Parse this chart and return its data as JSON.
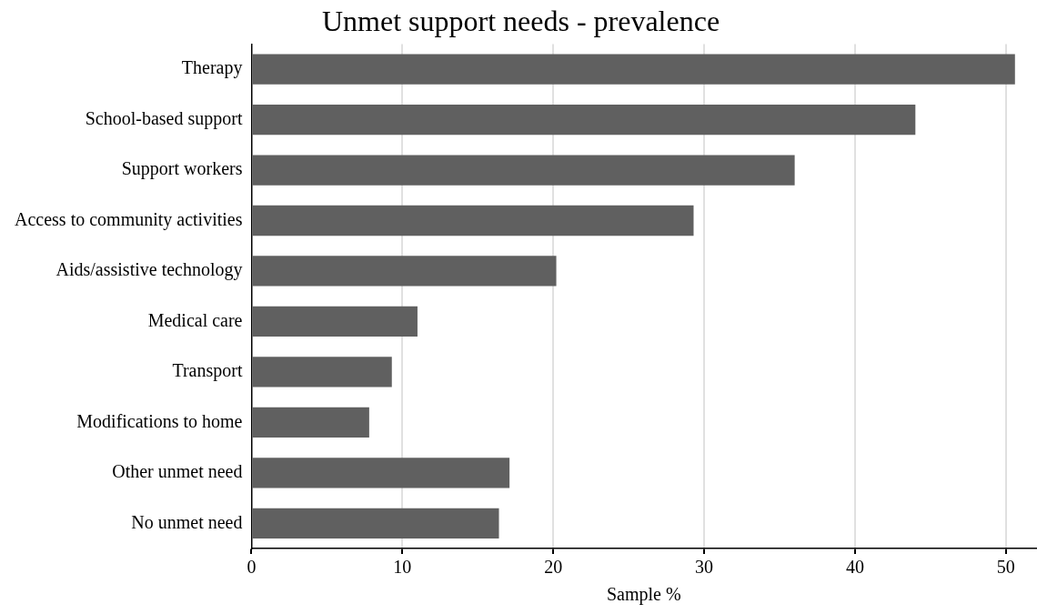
{
  "chart_data": {
    "type": "bar",
    "orientation": "horizontal",
    "title": "Unmet support needs - prevalence",
    "xlabel": "Sample %",
    "categories": [
      "Therapy",
      "School-based support",
      "Support workers",
      "Access to community activities",
      "Aids/assistive technology",
      "Medical care",
      "Transport",
      "Modifications to home",
      "Other unmet need",
      "No unmet need"
    ],
    "values": [
      50.6,
      44.0,
      36.0,
      29.3,
      20.2,
      11.0,
      9.3,
      7.8,
      17.1,
      16.4
    ],
    "color": "#606060",
    "xlim": [
      0,
      52
    ],
    "xticks": [
      0,
      10,
      20,
      30,
      40,
      50
    ],
    "grid": "x"
  }
}
